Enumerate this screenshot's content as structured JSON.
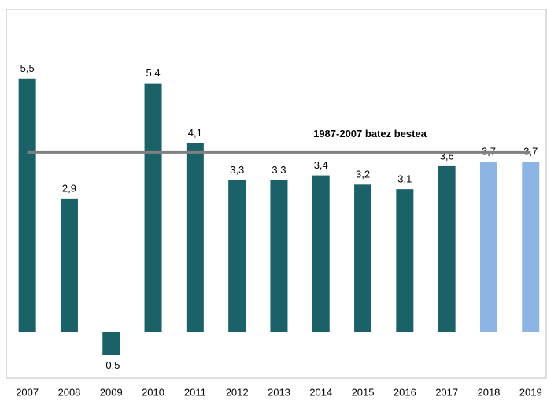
{
  "chart_data": {
    "type": "bar",
    "categories": [
      "2007",
      "2008",
      "2009",
      "2010",
      "2011",
      "2012",
      "2013",
      "2014",
      "2015",
      "2016",
      "2017",
      "2018",
      "2019"
    ],
    "values": [
      5.5,
      2.9,
      -0.5,
      5.4,
      4.1,
      3.3,
      3.3,
      3.4,
      3.2,
      3.1,
      3.6,
      3.7,
      3.7
    ],
    "value_labels": [
      "5,5",
      "2,9",
      "-0,5",
      "5,4",
      "4,1",
      "3,3",
      "3,3",
      "3,4",
      "3,2",
      "3,1",
      "3,6",
      "3,7",
      "3,7"
    ],
    "colors": [
      "#1b6268",
      "#1b6268",
      "#1b6268",
      "#1b6268",
      "#1b6268",
      "#1b6268",
      "#1b6268",
      "#1b6268",
      "#1b6268",
      "#1b6268",
      "#1b6268",
      "#8db4e2",
      "#8db4e2"
    ],
    "ylim": [
      -1,
      7
    ],
    "reference_line": {
      "label": "1987-2007 batez bestea",
      "value": 3.9,
      "color": "#808080"
    }
  }
}
